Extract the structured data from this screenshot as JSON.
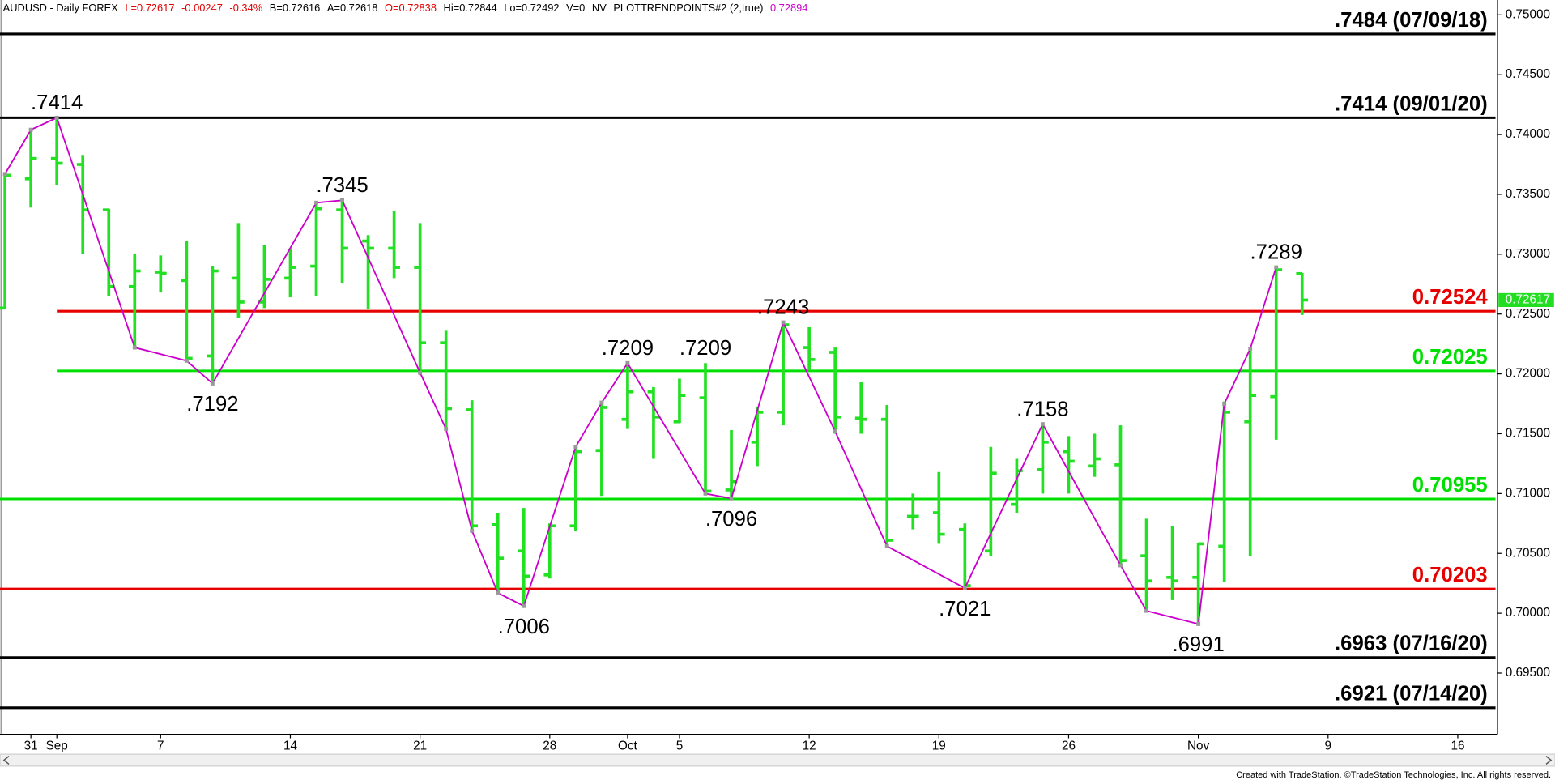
{
  "chart_data": {
    "type": "ohlc",
    "header": [
      {
        "text": "AUDUSD - Daily  FOREX",
        "color": "#000000"
      },
      {
        "text": "L=0.72617",
        "color": "#e00000"
      },
      {
        "text": "-0.00247",
        "color": "#e00000"
      },
      {
        "text": "-0.34%",
        "color": "#e00000"
      },
      {
        "text": "B=0.72616",
        "color": "#000000"
      },
      {
        "text": "A=0.72618",
        "color": "#000000"
      },
      {
        "text": "O=0.72838",
        "color": "#e00000"
      },
      {
        "text": "Hi=0.72844",
        "color": "#000000"
      },
      {
        "text": "Lo=0.72492",
        "color": "#000000"
      },
      {
        "text": "V=0",
        "color": "#000000"
      },
      {
        "text": "NV",
        "color": "#000000"
      },
      {
        "text": "PLOTTRENDPOINTS#2 (2,true)",
        "color": "#000000"
      },
      {
        "text": "0.72894",
        "color": "#cc00cc"
      }
    ],
    "categories": [
      null,
      "31",
      "Sep",
      null,
      null,
      null,
      "7",
      null,
      null,
      null,
      null,
      "14",
      null,
      null,
      null,
      null,
      "21",
      null,
      null,
      null,
      null,
      "28",
      null,
      null,
      "Oct",
      null,
      "5",
      null,
      null,
      null,
      null,
      "12",
      null,
      null,
      null,
      null,
      "19",
      null,
      null,
      null,
      null,
      "26",
      null,
      null,
      null,
      null,
      "Nov",
      null,
      null,
      null,
      null,
      "9",
      null,
      null,
      null,
      null,
      "16",
      null
    ],
    "open": [
      0.7255,
      0.7363,
      0.738,
      0.7375,
      0.7337,
      0.7273,
      0.7285,
      0.7278,
      0.7215,
      0.728,
      0.726,
      0.728,
      0.729,
      0.7337,
      0.7311,
      0.7305,
      0.7289,
      0.7226,
      0.717,
      0.7074,
      0.7052,
      0.7032,
      0.7073,
      0.7136,
      0.7162,
      0.7185,
      0.716,
      0.718,
      0.7103,
      0.7143,
      0.7168,
      0.7222,
      0.7218,
      0.7163,
      0.7162,
      0.7081,
      0.7084,
      0.707,
      0.7052,
      0.7091,
      0.712,
      0.7135,
      0.7123,
      0.7124,
      0.7048,
      0.703,
      0.703,
      0.7056,
      0.716,
      0.7181,
      0.72838,
      null,
      null,
      null,
      null,
      null,
      null,
      null
    ],
    "high": [
      0.7367,
      0.7404,
      0.7414,
      0.7383,
      0.7338,
      0.73,
      0.7299,
      0.7311,
      0.729,
      0.7326,
      0.7308,
      0.7305,
      0.7342,
      0.7345,
      0.7316,
      0.7336,
      0.7326,
      0.7236,
      0.7178,
      0.7084,
      0.7088,
      0.7075,
      0.7139,
      0.7177,
      0.7209,
      0.7189,
      0.7196,
      0.7209,
      0.7153,
      0.7172,
      0.7243,
      0.7239,
      0.7222,
      0.7193,
      0.7174,
      0.71,
      0.7118,
      0.7075,
      0.7139,
      0.7129,
      0.7158,
      0.7148,
      0.715,
      0.7157,
      0.7079,
      0.7073,
      0.7059,
      0.7177,
      0.7221,
      0.7289,
      0.72844,
      null,
      null,
      null,
      null,
      null,
      null,
      null
    ],
    "low": [
      0.7254,
      0.7339,
      0.7358,
      0.73,
      0.7265,
      0.7222,
      0.7268,
      0.7211,
      0.7192,
      0.7247,
      0.7255,
      0.7264,
      0.7265,
      0.7276,
      0.7254,
      0.728,
      0.7199,
      0.7154,
      0.7067,
      0.7017,
      0.7006,
      0.7029,
      0.7069,
      0.7098,
      0.7154,
      0.7129,
      0.7159,
      0.71,
      0.7096,
      0.7123,
      0.7157,
      0.7203,
      0.715,
      0.715,
      0.7056,
      0.707,
      0.7058,
      0.7021,
      0.7048,
      0.7084,
      0.71,
      0.71,
      0.7114,
      0.704,
      0.7002,
      0.7011,
      0.6991,
      0.7026,
      0.7048,
      0.7145,
      0.72492,
      null,
      null,
      null,
      null,
      null,
      null,
      null
    ],
    "close": [
      0.7366,
      0.738,
      0.7376,
      0.7337,
      0.7273,
      0.7286,
      0.7284,
      0.7213,
      0.7286,
      0.726,
      0.7279,
      0.7289,
      0.7338,
      0.7305,
      0.7305,
      0.7289,
      0.7226,
      0.7171,
      0.7073,
      0.7046,
      0.7031,
      0.7073,
      0.7135,
      0.7172,
      0.7185,
      0.7164,
      0.7182,
      0.7102,
      0.711,
      0.7168,
      0.7241,
      0.7212,
      0.7164,
      0.7162,
      0.7061,
      0.7081,
      0.7066,
      0.7023,
      0.7117,
      0.7119,
      0.7143,
      0.7127,
      0.7129,
      0.7044,
      0.7027,
      0.7027,
      0.7058,
      0.7168,
      0.7182,
      0.7287,
      0.72617,
      null,
      null,
      null,
      null,
      null,
      null,
      null
    ],
    "color": "#22e022",
    "trend": {
      "color": "#cc00cc",
      "x": [
        0,
        1,
        2,
        5,
        7,
        8,
        12,
        13,
        16,
        17,
        18,
        19,
        20,
        22,
        23,
        24,
        27,
        28,
        30,
        32,
        34,
        37,
        40,
        43,
        44,
        46,
        47,
        48,
        49
      ],
      "values": [
        0.7367,
        0.7404,
        0.7414,
        0.7222,
        0.7211,
        0.7192,
        0.7343,
        0.7345,
        0.7201,
        0.7154,
        0.7069,
        0.7017,
        0.7006,
        0.7139,
        0.7176,
        0.7209,
        0.71,
        0.7096,
        0.7243,
        0.7152,
        0.7056,
        0.7021,
        0.7158,
        0.704,
        0.7002,
        0.6991,
        0.7175,
        0.7221,
        0.7289
      ]
    },
    "annotations": [
      {
        "label": ".7414",
        "value": 0.7414
      },
      {
        "label": ".7192",
        "value": 0.7192
      },
      {
        "label": ".7345",
        "value": 0.7345
      },
      {
        "label": ".7006",
        "value": 0.7006
      },
      {
        "label": ".7209",
        "value": 0.7209
      },
      {
        "label": ".7209",
        "value": 0.7209
      },
      {
        "label": ".7096",
        "value": 0.7096
      },
      {
        "label": ".7243",
        "value": 0.7243
      },
      {
        "label": ".7158",
        "value": 0.7158
      },
      {
        "label": ".7021",
        "value": 0.7021
      },
      {
        "label": ".6991",
        "value": 0.6991
      },
      {
        "label": ".7289",
        "value": 0.7289
      }
    ],
    "levels": [
      {
        "value": 0.7484,
        "label": ".7484 (07/09/18)",
        "color": "#000000"
      },
      {
        "value": 0.7414,
        "label": ".7414 (09/01/20)",
        "color": "#000000"
      },
      {
        "value": 0.72524,
        "color": "#e60000"
      },
      {
        "value": 0.72025,
        "color": "#00e000"
      },
      {
        "value": 0.70955,
        "color": "#00e000"
      },
      {
        "value": 0.70203,
        "color": "#e60000"
      },
      {
        "value": 0.6963,
        "label": ".6963 (07/16/20)",
        "color": "#000000"
      },
      {
        "value": 0.6921,
        "label": ".6921 (07/14/20)",
        "color": "#000000"
      }
    ],
    "last_price": 0.72617,
    "ylim": [
      0.68988,
      0.75124
    ],
    "yticks": [
      {
        "value": 0.75,
        "label": "0.75000"
      },
      {
        "value": 0.745,
        "label": "0.74500"
      },
      {
        "value": 0.74,
        "label": "0.74000"
      },
      {
        "value": 0.735,
        "label": "0.73500"
      },
      {
        "value": 0.73,
        "label": "0.73000"
      },
      {
        "value": 0.725,
        "label": "0.72500"
      },
      {
        "value": 0.72,
        "label": "0.72000"
      },
      {
        "value": 0.715,
        "label": "0.71500"
      },
      {
        "value": 0.71,
        "label": "0.71000"
      },
      {
        "value": 0.705,
        "label": "0.70500"
      },
      {
        "value": 0.7,
        "label": "0.70000"
      },
      {
        "value": 0.695,
        "label": "0.69500"
      }
    ],
    "footer": "Created with TradeStation. ©TradeStation Technologies, Inc. All rights reserved."
  }
}
